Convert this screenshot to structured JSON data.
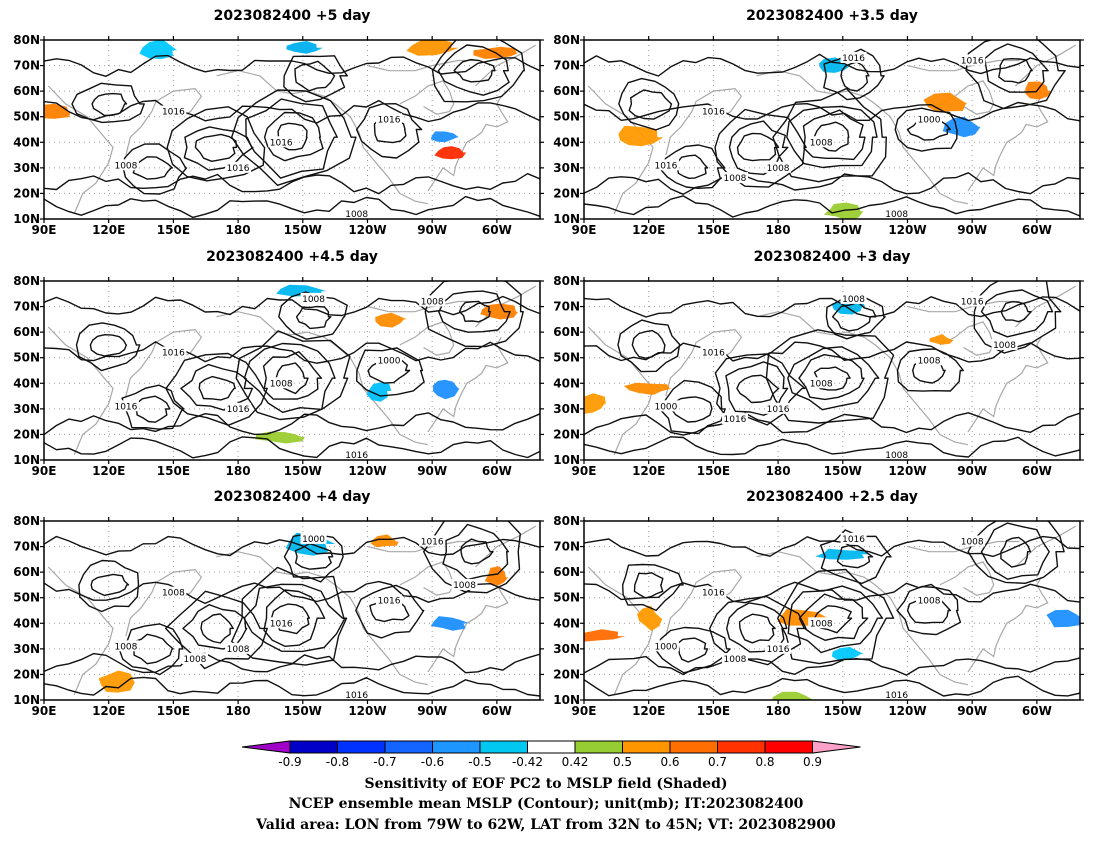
{
  "panels": [
    {
      "title": "2023082400  +5 day",
      "contour_labels": [
        "1016",
        "1016",
        "1016",
        "1016",
        "1008",
        "1008"
      ],
      "positive_blobs": [
        {
          "lon": 93,
          "lat": 52,
          "c": "#ff7f00"
        },
        {
          "lon": 300,
          "lat": 75,
          "c": "#ff7f00"
        },
        {
          "lon": 278,
          "lat": 36,
          "c": "#ff2a00"
        },
        {
          "lon": 270,
          "lat": 77,
          "c": "#ff9400"
        }
      ],
      "negative_blobs": [
        {
          "lon": 210,
          "lat": 77,
          "c": "#00b0ee"
        },
        {
          "lon": 275,
          "lat": 42,
          "c": "#1e90ff"
        },
        {
          "lon": 143,
          "lat": 76,
          "c": "#00c8ff"
        }
      ]
    },
    {
      "title": "2023082400  +3.5 day",
      "contour_labels": [
        "1016",
        "1008",
        "1008",
        "1000",
        "1016",
        "1008",
        "1016",
        "1016",
        "1008"
      ],
      "positive_blobs": [
        {
          "lon": 115,
          "lat": 42,
          "c": "#ff9a00"
        },
        {
          "lon": 300,
          "lat": 60,
          "c": "#ff7f00"
        },
        {
          "lon": 258,
          "lat": 55,
          "c": "#ff8a00"
        },
        {
          "lon": 210,
          "lat": 13,
          "c": "#9acd32"
        }
      ],
      "negative_blobs": [
        {
          "lon": 205,
          "lat": 70,
          "c": "#00b7f0"
        },
        {
          "lon": 265,
          "lat": 46,
          "c": "#1e90ff"
        }
      ]
    },
    {
      "title": "2023082400  +4.5 day",
      "contour_labels": [
        "1016",
        "1008",
        "1016",
        "1000",
        "1016",
        "1016",
        "1008",
        "1008"
      ],
      "positive_blobs": [
        {
          "lon": 300,
          "lat": 68,
          "c": "#ff7f00"
        },
        {
          "lon": 250,
          "lat": 65,
          "c": "#ff8c00"
        },
        {
          "lon": 200,
          "lat": 19,
          "c": "#9acd32"
        }
      ],
      "negative_blobs": [
        {
          "lon": 210,
          "lat": 76,
          "c": "#00b7f0"
        },
        {
          "lon": 275,
          "lat": 38,
          "c": "#1e90ff"
        },
        {
          "lon": 245,
          "lat": 37,
          "c": "#00bfff"
        }
      ]
    },
    {
      "title": "2023082400  +3 day",
      "contour_labels": [
        "1016",
        "1008",
        "1016",
        "1008",
        "1000",
        "1008",
        "1008",
        "1016",
        "1016",
        "1008"
      ],
      "positive_blobs": [
        {
          "lon": 120,
          "lat": 38,
          "c": "#ff8c00"
        },
        {
          "lon": 93,
          "lat": 32,
          "c": "#ff9a00"
        },
        {
          "lon": 255,
          "lat": 57,
          "c": "#ff9400"
        }
      ],
      "negative_blobs": [
        {
          "lon": 213,
          "lat": 70,
          "c": "#00b7f0"
        }
      ]
    },
    {
      "title": "2023082400  +4 day",
      "contour_labels": [
        "1008",
        "1016",
        "1008",
        "1016",
        "1008",
        "1016",
        "1000",
        "1016",
        "1008",
        "1008"
      ],
      "positive_blobs": [
        {
          "lon": 300,
          "lat": 58,
          "c": "#ff7f00"
        },
        {
          "lon": 248,
          "lat": 72,
          "c": "#ff8c00"
        },
        {
          "lon": 123,
          "lat": 17,
          "c": "#ff9a00"
        }
      ],
      "negative_blobs": [
        {
          "lon": 278,
          "lat": 40,
          "c": "#1e90ff"
        },
        {
          "lon": 213,
          "lat": 71,
          "c": "#00b7f0"
        }
      ]
    },
    {
      "title": "2023082400  +2.5 day",
      "contour_labels": [
        "1016",
        "1008",
        "1016",
        "1008",
        "1000",
        "1016",
        "1016",
        "1008",
        "1008"
      ],
      "positive_blobs": [
        {
          "lon": 96,
          "lat": 35,
          "c": "#ff6a00"
        },
        {
          "lon": 120,
          "lat": 42,
          "c": "#ff9a00"
        },
        {
          "lon": 190,
          "lat": 42,
          "c": "#ff8c00"
        },
        {
          "lon": 187,
          "lat": 10,
          "c": "#9acd32"
        }
      ],
      "negative_blobs": [
        {
          "lon": 210,
          "lat": 67,
          "c": "#00b7f0"
        },
        {
          "lon": 212,
          "lat": 28,
          "c": "#00c8ff"
        },
        {
          "lon": 313,
          "lat": 42,
          "c": "#1e90ff"
        }
      ]
    }
  ],
  "lon_ticks": [
    "90E",
    "120E",
    "150E",
    "180",
    "150W",
    "120W",
    "90W",
    "60W"
  ],
  "lat_ticks": [
    "80N",
    "70N",
    "60N",
    "50N",
    "40N",
    "30N",
    "20N",
    "10N"
  ],
  "colorbar": {
    "ticks": [
      "-0.9",
      "-0.8",
      "-0.7",
      "-0.6",
      "-0.5",
      "-0.42",
      "0.42",
      "0.5",
      "0.6",
      "0.7",
      "0.8",
      "0.9"
    ],
    "colors": [
      "#a000c8",
      "#0000c8",
      "#0032ff",
      "#1464ff",
      "#1e96ff",
      "#00c8f0",
      "#ffffff",
      "#96cd32",
      "#ff9600",
      "#ff6e00",
      "#ff3200",
      "#ff0000",
      "#ffa0c8"
    ]
  },
  "caption": {
    "line1": "Sensitivity of EOF PC2 to MSLP field (Shaded)",
    "line2": "NCEP ensemble mean MSLP (Contour); unit(mb); IT:2023082400",
    "line3": "Valid area: LON from 79W to 62W, LAT from 32N to 45N; VT: 2023082900"
  }
}
